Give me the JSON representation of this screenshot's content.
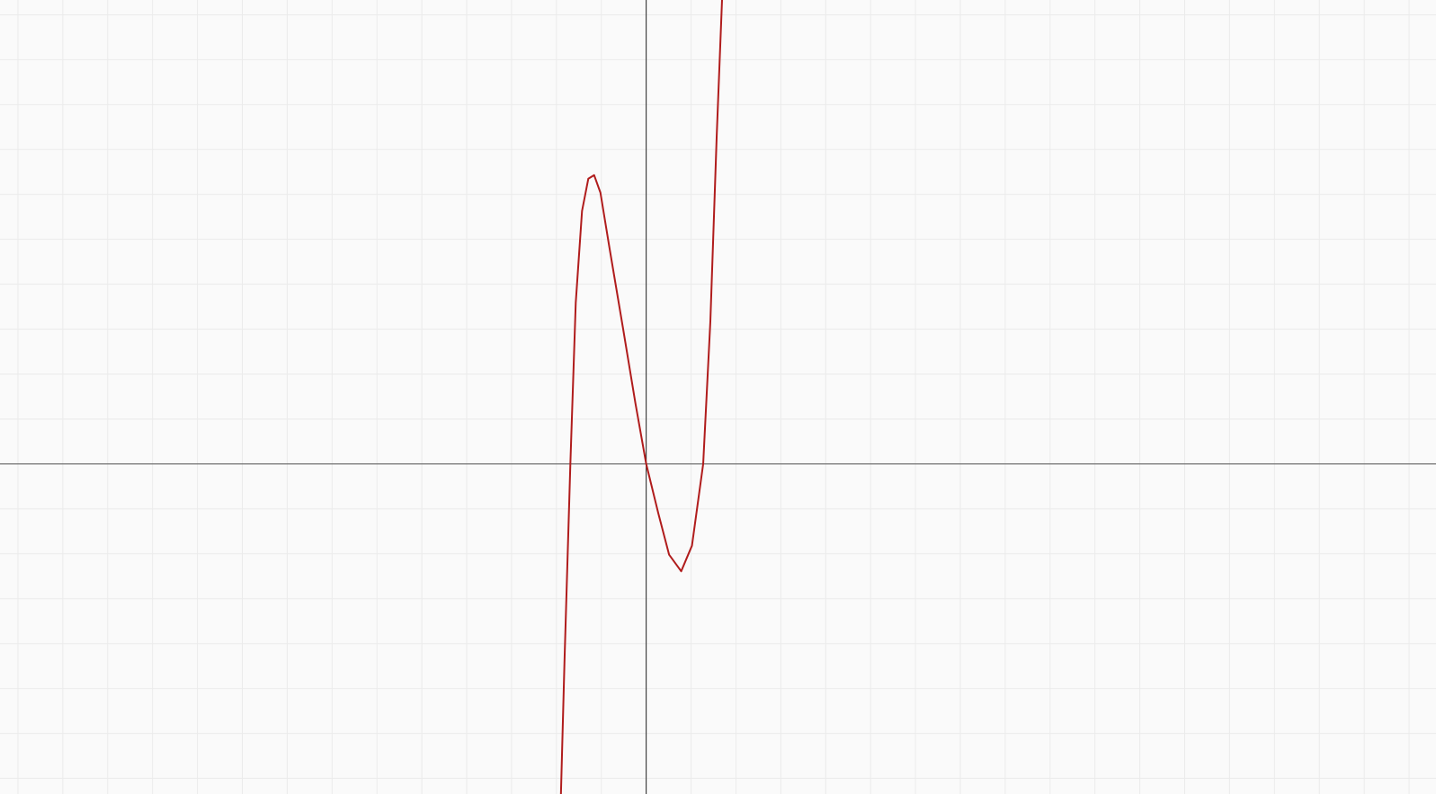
{
  "chart_data": {
    "type": "line",
    "x": [
      -1.9,
      -1.82,
      -1.69,
      -1.57,
      -1.43,
      -1.29,
      -1.16,
      -1.02,
      -0.82,
      -0.51,
      -0.24,
      0,
      0.27,
      0.51,
      0.78,
      1.02,
      1.27,
      1.43,
      1.57,
      1.69
    ],
    "series": [
      {
        "color": "#b01c1c",
        "values": [
          -7.35,
          -4.37,
          0,
          3.59,
          5.63,
          6.35,
          6.43,
          6.04,
          4.82,
          2.98,
          1.35,
          0,
          -1.1,
          -2.02,
          -2.39,
          -1.82,
          0,
          3.18,
          7.27,
          10.33
        ]
      }
    ],
    "xlim": [
      -14.4,
      17.6
    ],
    "ylim": [
      -7.35,
      10.33
    ],
    "xticks": [
      -14,
      -13,
      -12,
      -11,
      -10,
      -9,
      -8,
      -7,
      -6,
      -5,
      -4,
      -3,
      -2,
      -1,
      0,
      1,
      2,
      3,
      4,
      5,
      6,
      7,
      8,
      9,
      10,
      11,
      12,
      13,
      14,
      15,
      16,
      17
    ],
    "yticks": [
      -7,
      -6,
      -5,
      -4,
      -3,
      -2,
      -1,
      0,
      1,
      2,
      3,
      4,
      5,
      6,
      7,
      8,
      9,
      10
    ],
    "grid": true,
    "axes": true
  }
}
